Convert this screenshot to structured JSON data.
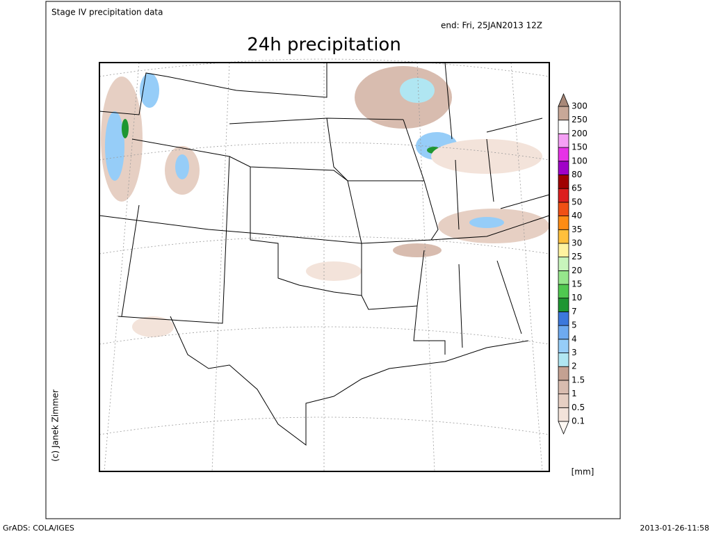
{
  "header": {
    "subtitle": "Stage IV precipitation data",
    "valid": "end: Fri, 25JAN2013 12Z",
    "title": "24h precipitation"
  },
  "legend": {
    "unit": "[mm]",
    "levels": [
      0.1,
      0.5,
      1,
      1.5,
      2,
      3,
      4,
      5,
      7,
      10,
      15,
      20,
      25,
      30,
      35,
      40,
      50,
      65,
      80,
      100,
      150,
      200,
      250,
      300
    ],
    "colors": [
      "#fdf7f2",
      "#f3e3da",
      "#e6cfc3",
      "#d8bcaf",
      "#c4a192",
      "#b0e6f2",
      "#96cdf8",
      "#6eaaf0",
      "#3c78dc",
      "#1e9632",
      "#50c850",
      "#96e68c",
      "#c8f5bc",
      "#fff3a0",
      "#ffc03c",
      "#ff8c14",
      "#f05014",
      "#dc1e1e",
      "#a00000",
      "#a000c8",
      "#e632e6",
      "#f5a0f5",
      "#ffffff",
      "#c8a898",
      "#a88878"
    ]
  },
  "credit": "(c) Janek Zimmer",
  "footer": {
    "left": "GrADS: COLA/IGES",
    "right": "2013-01-26-11:58"
  }
}
